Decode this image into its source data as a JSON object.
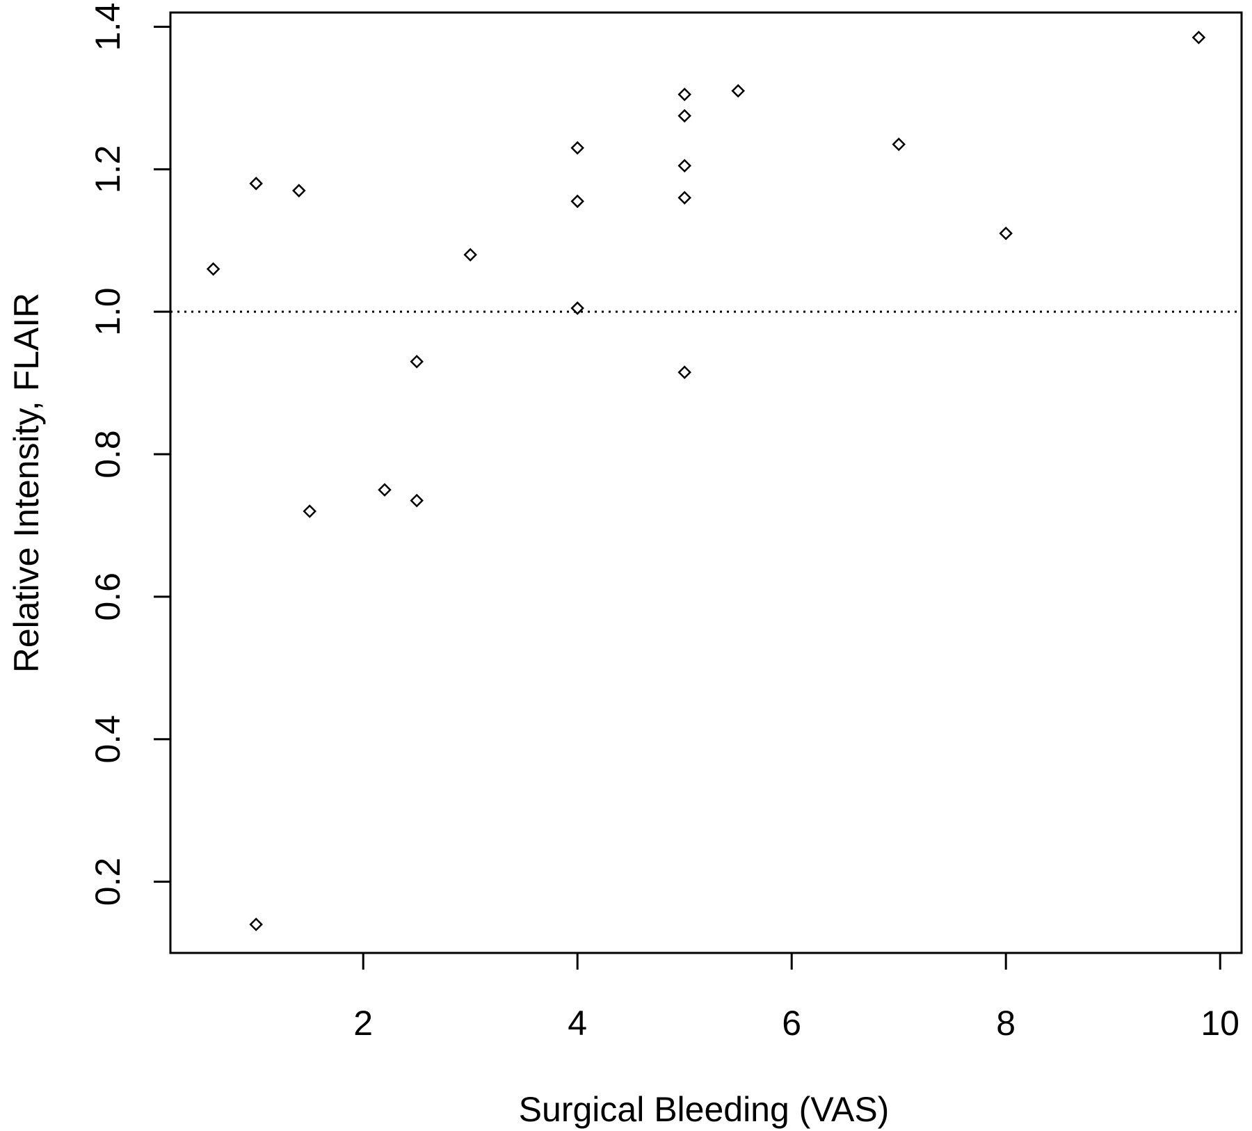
{
  "chart_data": {
    "type": "scatter",
    "title": "",
    "xlabel": "Surgical Bleeding (VAS)",
    "ylabel": "Relative Intensity, FLAIR",
    "xlim": [
      0.2,
      10.2
    ],
    "ylim": [
      0.1,
      1.42
    ],
    "x_ticks": [
      "2",
      "4",
      "6",
      "8",
      "10"
    ],
    "y_ticks": [
      "0.2",
      "0.4",
      "0.6",
      "0.8",
      "1.0",
      "1.2",
      "1.4"
    ],
    "grid": false,
    "marker": "open-diamond",
    "reference_line": {
      "y": 1.0,
      "style": "dotted"
    },
    "series": [
      {
        "x": [
          0.6,
          1.0,
          1.0,
          1.4,
          1.5,
          2.2,
          2.5,
          2.5,
          3.0,
          4.0,
          4.0,
          4.0,
          5.0,
          5.0,
          5.0,
          5.0,
          5.0,
          5.5,
          7.0,
          8.0,
          9.8
        ],
        "y": [
          1.06,
          1.18,
          0.14,
          1.17,
          0.72,
          0.75,
          0.93,
          0.735,
          1.08,
          1.23,
          1.155,
          1.005,
          1.305,
          1.275,
          1.205,
          1.16,
          0.915,
          1.31,
          1.235,
          1.11,
          1.385
        ]
      }
    ]
  }
}
